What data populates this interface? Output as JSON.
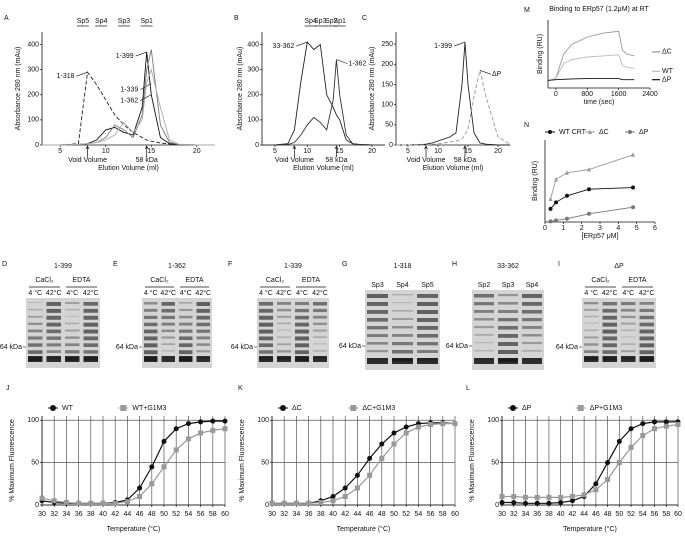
{
  "chart_data": [
    {
      "type": "line",
      "panel": "A",
      "xlabel": "Elution Volume (ml)",
      "ylabel": "Absorbance 280 nm (mAu)",
      "legend": "curve",
      "x": [
        3,
        5,
        7,
        8,
        9,
        10,
        11,
        12,
        13,
        14,
        14.5,
        15,
        16,
        17,
        18,
        20,
        22
      ],
      "xlim": [
        3,
        22
      ],
      "xticks": [
        5,
        10,
        15,
        20
      ],
      "ylim": [
        0,
        450
      ],
      "yticks": [
        0,
        100,
        200,
        300,
        400
      ],
      "fractions": [
        {
          "label": "Sp5",
          "x": 7.5
        },
        {
          "label": "Sp4",
          "x": 9.5
        },
        {
          "label": "Sp3",
          "x": 12
        },
        {
          "label": "Sp1",
          "x": 14.5
        }
      ],
      "markers": [
        {
          "label": "Void Volume",
          "x": 8
        },
        {
          "label": "58 kDa",
          "x": 14.5
        }
      ],
      "series": [
        {
          "name": "1-318",
          "color": "#222222",
          "line_style": "dashed",
          "values": [
            0,
            0,
            5,
            290,
            240,
            180,
            120,
            80,
            50,
            30,
            20,
            15,
            8,
            4,
            2,
            0,
            0
          ]
        },
        {
          "name": "1-399",
          "color": "#111111",
          "values": [
            0,
            0,
            2,
            5,
            20,
            60,
            70,
            50,
            40,
            150,
            370,
            200,
            30,
            5,
            2,
            0,
            0
          ]
        },
        {
          "name": "1-339",
          "color": "#777777",
          "values": [
            0,
            0,
            2,
            5,
            10,
            30,
            80,
            60,
            30,
            120,
            300,
            380,
            80,
            10,
            2,
            0,
            0
          ]
        },
        {
          "name": "1-362",
          "color": "#aaaaaa",
          "values": [
            0,
            0,
            2,
            5,
            10,
            20,
            40,
            90,
            50,
            100,
            250,
            300,
            150,
            20,
            3,
            0,
            0
          ]
        }
      ]
    },
    {
      "type": "line",
      "panel": "B",
      "xlabel": "Elution Volume (ml)",
      "ylabel": "Absorbance 280 nm (mAu)",
      "legend": "curve",
      "x": [
        3,
        5,
        7,
        8,
        9,
        10,
        11,
        12,
        13,
        14,
        14.5,
        15,
        16,
        17,
        18,
        20,
        22
      ],
      "xlim": [
        3,
        22
      ],
      "xticks": [
        5,
        10,
        15,
        20
      ],
      "ylim": [
        0,
        450
      ],
      "yticks": [
        0,
        100,
        200,
        300,
        400
      ],
      "fractions": [
        {
          "label": "Sp4",
          "x": 10.5
        },
        {
          "label": "Sp3",
          "x": 12
        },
        {
          "label": "Sp2",
          "x": 13.7
        },
        {
          "label": "Sp1",
          "x": 15
        }
      ],
      "markers": [
        {
          "label": "Void Volume",
          "x": 8
        },
        {
          "label": "58 kDa",
          "x": 14.5
        }
      ],
      "series": [
        {
          "name": "33-362",
          "color": "#222222",
          "values": [
            0,
            0,
            5,
            60,
            250,
            410,
            380,
            400,
            200,
            150,
            120,
            100,
            20,
            5,
            2,
            0,
            0
          ]
        },
        {
          "name": "1-362",
          "color": "#333333",
          "values": [
            0,
            0,
            2,
            10,
            40,
            80,
            110,
            90,
            60,
            180,
            340,
            200,
            40,
            5,
            2,
            0,
            0
          ]
        }
      ]
    },
    {
      "type": "line",
      "panel": "C",
      "xlabel": "Elution Volume (ml)",
      "ylabel": "Absorbance 280 nm (mAu)",
      "legend": "curve",
      "x": [
        3,
        5,
        7,
        8,
        9,
        10,
        11,
        12,
        13,
        14,
        14.5,
        15,
        16,
        17,
        18,
        20,
        22
      ],
      "xlim": [
        3,
        22
      ],
      "xticks": [
        5,
        10,
        15,
        20
      ],
      "ylim": [
        0,
        280
      ],
      "yticks": [
        0,
        50,
        100,
        150,
        200,
        250
      ],
      "markers": [
        {
          "label": "Void Volume",
          "x": 8
        },
        {
          "label": "58 kDa",
          "x": 14.5
        }
      ],
      "series": [
        {
          "name": "1-399",
          "color": "#222222",
          "values": [
            0,
            0,
            1,
            2,
            5,
            10,
            15,
            20,
            30,
            150,
            255,
            150,
            30,
            5,
            2,
            0,
            0
          ]
        },
        {
          "name": "ΔP",
          "color": "#999999",
          "line_style": "dashed",
          "values": [
            0,
            0,
            0,
            0,
            2,
            3,
            5,
            8,
            10,
            15,
            25,
            40,
            120,
            185,
            120,
            20,
            2
          ]
        }
      ]
    },
    {
      "type": "line",
      "panel": "M",
      "title": "Binding to ERp57 (1.2μM) at RT",
      "xlabel": "time (sec)",
      "ylabel": "Binding (RU)",
      "legend": "right",
      "x": [
        -200,
        0,
        200,
        400,
        800,
        1200,
        1600,
        1700,
        1800,
        2000,
        2400
      ],
      "xlim": [
        -200,
        2400
      ],
      "xticks": [
        0,
        800,
        1600,
        2400
      ],
      "ylim": [
        -20,
        160
      ],
      "series": [
        {
          "name": "ΔC",
          "color": "#999999",
          "values": [
            0,
            5,
            70,
            95,
            115,
            125,
            130,
            80,
            70,
            65,
            null
          ]
        },
        {
          "name": "WT",
          "color": "#bbbbbb",
          "values": [
            0,
            5,
            45,
            55,
            62,
            65,
            68,
            40,
            35,
            32,
            null
          ]
        },
        {
          "name": "ΔP",
          "color": "#111111",
          "values": [
            0,
            2,
            3,
            4,
            5,
            5,
            5,
            2,
            2,
            2,
            null
          ]
        }
      ]
    },
    {
      "type": "line",
      "panel": "N",
      "xlabel": "[ERp57 μM]",
      "ylabel": "Binding (RU)",
      "legend": "top",
      "x": [
        0.3,
        0.6,
        1.2,
        2.4,
        4.8
      ],
      "xlim": [
        0,
        6
      ],
      "xticks": [
        0,
        1,
        2,
        3,
        4,
        5,
        6
      ],
      "ylim": [
        0,
        250
      ],
      "series": [
        {
          "name": "WT CRT",
          "color": "#111111",
          "marker": "circle",
          "values": [
            40,
            60,
            80,
            100,
            105
          ]
        },
        {
          "name": "ΔC",
          "color": "#999999",
          "marker": "triangle",
          "values": [
            70,
            130,
            150,
            160,
            205
          ]
        },
        {
          "name": "ΔP",
          "color": "#777777",
          "marker": "circle",
          "values": [
            2,
            5,
            10,
            25,
            45
          ]
        }
      ]
    },
    {
      "type": "line",
      "panel": "J",
      "xlabel": "Temperature (°C)",
      "ylabel": "% Maximum Fluorescence",
      "legend": "top",
      "grid": true,
      "x": [
        30,
        32,
        34,
        36,
        38,
        40,
        42,
        44,
        46,
        48,
        50,
        52,
        54,
        56,
        58,
        60
      ],
      "xlim": [
        30,
        60
      ],
      "xticks": [
        30,
        32,
        34,
        36,
        38,
        40,
        42,
        44,
        46,
        48,
        50,
        52,
        54,
        56,
        58,
        60
      ],
      "ylim": [
        0,
        105
      ],
      "yticks": [
        0,
        50,
        100
      ],
      "series": [
        {
          "name": "WT",
          "color": "#111111",
          "marker": "circle",
          "values": [
            5,
            3,
            2,
            2,
            2,
            2,
            3,
            6,
            20,
            45,
            75,
            90,
            96,
            98,
            99,
            99
          ]
        },
        {
          "name": "WT+G1M3",
          "color": "#999999",
          "marker": "square",
          "values": [
            8,
            5,
            3,
            2,
            2,
            2,
            2,
            4,
            10,
            25,
            45,
            65,
            78,
            85,
            88,
            90
          ]
        }
      ]
    },
    {
      "type": "line",
      "panel": "K",
      "xlabel": "Temperature (°C)",
      "ylabel": "% Maximum Fluorescence",
      "legend": "top",
      "grid": true,
      "x": [
        30,
        32,
        34,
        36,
        38,
        40,
        42,
        44,
        46,
        48,
        50,
        52,
        54,
        56,
        58,
        60
      ],
      "xlim": [
        30,
        60
      ],
      "xticks": [
        30,
        32,
        34,
        36,
        38,
        40,
        42,
        44,
        46,
        48,
        50,
        52,
        54,
        56,
        58,
        60
      ],
      "ylim": [
        0,
        105
      ],
      "yticks": [
        0,
        50,
        100
      ],
      "series": [
        {
          "name": "ΔC",
          "color": "#111111",
          "marker": "circle",
          "values": [
            2,
            2,
            2,
            2,
            5,
            10,
            20,
            35,
            55,
            72,
            85,
            92,
            96,
            97,
            97,
            96
          ]
        },
        {
          "name": "ΔC+G1M3",
          "color": "#999999",
          "marker": "square",
          "values": [
            2,
            2,
            2,
            2,
            3,
            5,
            10,
            20,
            35,
            55,
            72,
            85,
            92,
            95,
            96,
            96
          ]
        }
      ]
    },
    {
      "type": "line",
      "panel": "L",
      "xlabel": "Temperature (°C)",
      "ylabel": "% Maximum Fluorescence",
      "legend": "top",
      "grid": true,
      "x": [
        30,
        32,
        34,
        36,
        38,
        40,
        42,
        44,
        46,
        48,
        50,
        52,
        54,
        56,
        58,
        60
      ],
      "xlim": [
        30,
        60
      ],
      "xticks": [
        30,
        32,
        34,
        36,
        38,
        40,
        42,
        44,
        46,
        48,
        50,
        52,
        54,
        56,
        58,
        60
      ],
      "ylim": [
        0,
        105
      ],
      "yticks": [
        0,
        50,
        100
      ],
      "series": [
        {
          "name": "ΔP",
          "color": "#111111",
          "marker": "circle",
          "values": [
            3,
            3,
            2,
            2,
            2,
            3,
            5,
            10,
            25,
            50,
            75,
            90,
            96,
            98,
            98,
            98
          ]
        },
        {
          "name": "ΔP+G1M3",
          "color": "#999999",
          "marker": "square",
          "values": [
            10,
            10,
            9,
            9,
            9,
            9,
            10,
            12,
            18,
            30,
            50,
            68,
            82,
            90,
            93,
            95
          ]
        }
      ]
    }
  ],
  "gels": [
    {
      "panel": "D",
      "title": "1-399",
      "groups": [
        "CaCl₂",
        "EDTA"
      ],
      "lanes": [
        "4 °C",
        "42°C",
        "4°C",
        "42°C"
      ],
      "marker": "64 kDa"
    },
    {
      "panel": "E",
      "title": "1-362",
      "groups": [
        "CaCl₂",
        "EDTA"
      ],
      "lanes": [
        "4 °C",
        "42°C",
        "4°C",
        "42°C"
      ],
      "marker": "64 kDa"
    },
    {
      "panel": "F",
      "title": "1-339",
      "groups": [
        "CaCl₂",
        "EDTA"
      ],
      "lanes": [
        "4 °C",
        "42°C",
        "4°C",
        "42°C"
      ],
      "marker": "64 kDa"
    },
    {
      "panel": "G",
      "title": "1-318",
      "lanes": [
        "Sp3",
        "Sp4",
        "Sp5"
      ],
      "marker": "64 kDa"
    },
    {
      "panel": "H",
      "title": "33-362",
      "lanes": [
        "Sp2",
        "Sp3",
        "Sp4"
      ],
      "marker": "64 kDa"
    },
    {
      "panel": "I",
      "title": "ΔP",
      "groups": [
        "CaCl₂",
        "EDTA"
      ],
      "lanes": [
        "4 °C",
        "42°C",
        "4°C",
        "42°C"
      ],
      "marker": "64 kDa"
    }
  ]
}
